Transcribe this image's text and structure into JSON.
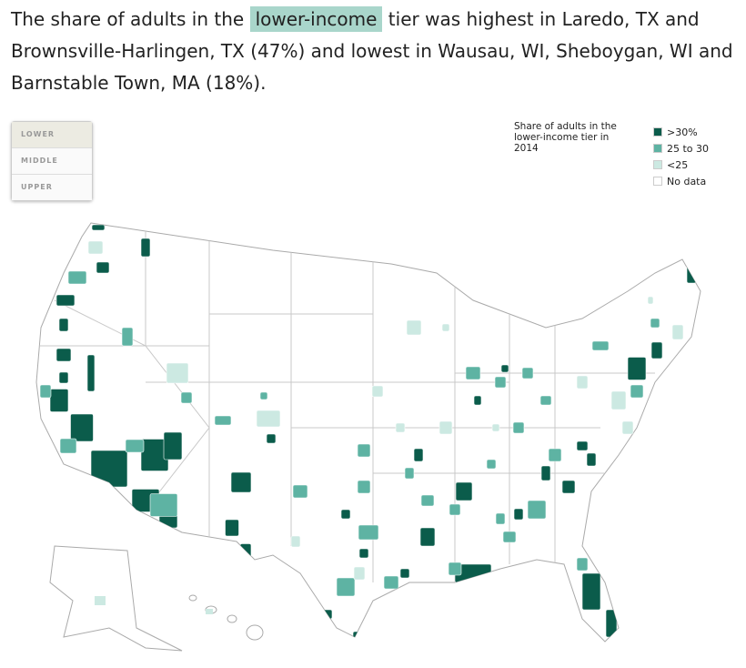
{
  "headline": {
    "before": "The share of adults in the",
    "highlight": "lower-income",
    "after": "tier was highest in Laredo, TX and Brownsville-Harlingen, TX (47%) and lowest in Wausau, WI, Sheboygan, WI and Barnstable Town, MA (18%)."
  },
  "tabs": [
    "LOWER",
    "MIDDLE",
    "UPPER"
  ],
  "legend": {
    "title": "Share of adults in the lower-income tier in 2014",
    "items": [
      {
        "label": ">30%",
        "color": "#0b5c4b"
      },
      {
        "label": "25 to 30",
        "color": "#5eb3a3"
      },
      {
        "label": "<25",
        "color": "#cce9e2"
      },
      {
        "label": "No data",
        "color": "#ffffff"
      }
    ]
  }
}
